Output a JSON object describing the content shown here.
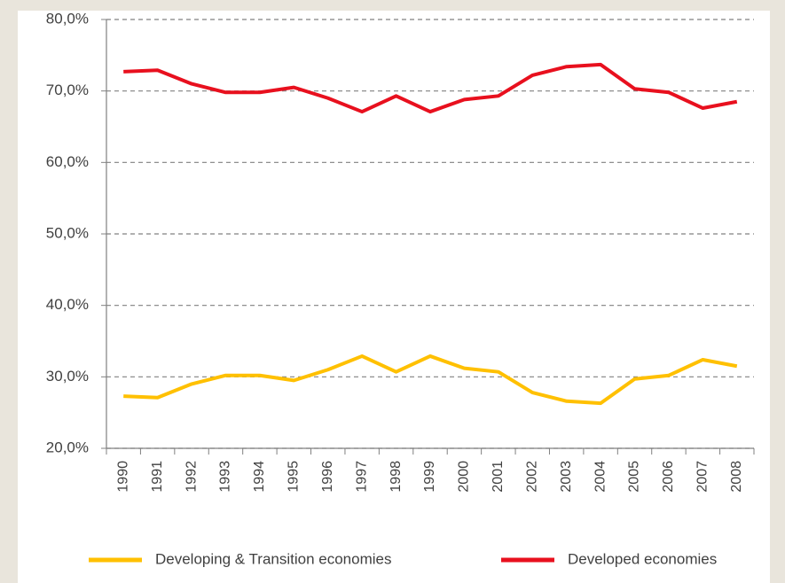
{
  "chart_data": {
    "type": "line",
    "categories": [
      "1990",
      "1991",
      "1992",
      "1993",
      "1994",
      "1995",
      "1996",
      "1997",
      "1998",
      "1999",
      "2000",
      "2001",
      "2002",
      "2003",
      "2004",
      "2005",
      "2006",
      "2007",
      "2008"
    ],
    "series": [
      {
        "name": "Developing & Transition economies",
        "color": "#ffc000",
        "values": [
          27.3,
          27.1,
          29.0,
          30.2,
          30.2,
          29.5,
          31.0,
          32.9,
          30.7,
          32.9,
          31.2,
          30.7,
          27.8,
          26.6,
          26.3,
          29.7,
          30.2,
          32.4,
          31.5
        ]
      },
      {
        "name": "Developed economies",
        "color": "#e8101e",
        "values": [
          72.7,
          72.9,
          71.0,
          69.8,
          69.8,
          70.5,
          69.0,
          67.1,
          69.3,
          67.1,
          68.8,
          69.3,
          72.2,
          73.4,
          73.7,
          70.3,
          69.8,
          67.6,
          68.5
        ]
      }
    ],
    "ylim": [
      20,
      80
    ],
    "yticks": [
      {
        "value": 20,
        "label": "20,0%"
      },
      {
        "value": 30,
        "label": "30,0%"
      },
      {
        "value": 40,
        "label": "40,0%"
      },
      {
        "value": 50,
        "label": "50,0%"
      },
      {
        "value": 60,
        "label": "60,0%"
      },
      {
        "value": 70,
        "label": "70,0%"
      },
      {
        "value": 80,
        "label": "80,0%"
      }
    ],
    "grid": true,
    "legend": "bottom"
  }
}
